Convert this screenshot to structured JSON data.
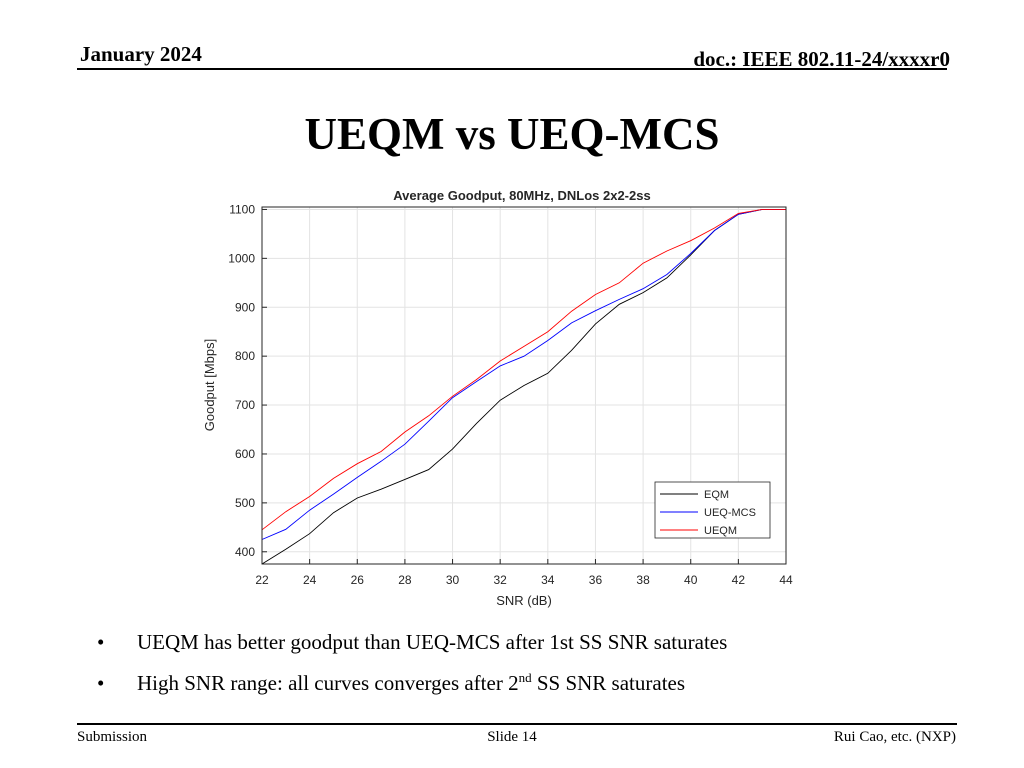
{
  "header": {
    "date": "January 2024",
    "doc": "doc.: IEEE 802.11-24/xxxxr0"
  },
  "slide": {
    "title": "UEQM vs UEQ-MCS"
  },
  "chart_data": {
    "type": "line",
    "title": "Average Goodput, 80MHz, DNLos 2x2-2ss",
    "xlabel": "SNR (dB)",
    "ylabel": "Goodput [Mbps]",
    "xlim": [
      22,
      44
    ],
    "ylim": [
      375,
      1105
    ],
    "xticks": [
      22,
      24,
      26,
      28,
      30,
      32,
      34,
      36,
      38,
      40,
      42,
      44
    ],
    "yticks": [
      400,
      500,
      600,
      700,
      800,
      900,
      1000,
      1100
    ],
    "grid": true,
    "legend_position": "bottom-right",
    "x": [
      22,
      23,
      24,
      25,
      26,
      27,
      28,
      29,
      30,
      31,
      32,
      33,
      34,
      35,
      36,
      37,
      38,
      39,
      40,
      41,
      42,
      43,
      44
    ],
    "series": [
      {
        "name": "EQM",
        "color": "#000000",
        "values": [
          375,
          405,
          437,
          480,
          510,
          528,
          548,
          568,
          610,
          662,
          710,
          740,
          765,
          812,
          866,
          906,
          930,
          960,
          1007,
          1057,
          1090,
          1100,
          1100
        ]
      },
      {
        "name": "UEQ-MCS",
        "color": "#0000ff",
        "values": [
          425,
          446,
          485,
          518,
          552,
          585,
          620,
          667,
          715,
          748,
          780,
          800,
          832,
          868,
          893,
          916,
          938,
          967,
          1010,
          1057,
          1090,
          1100,
          1100
        ]
      },
      {
        "name": "UEQM",
        "color": "#ff0000",
        "values": [
          445,
          482,
          513,
          550,
          580,
          605,
          645,
          678,
          718,
          752,
          790,
          820,
          850,
          892,
          926,
          950,
          990,
          1015,
          1036,
          1062,
          1092,
          1100,
          1100
        ]
      }
    ]
  },
  "bullets": {
    "b1": "UEQM has better goodput than UEQ-MCS after 1st SS SNR saturates",
    "b2_pre": "High SNR range: all curves converges after 2",
    "b2_sup": "nd",
    "b2_post": " SS SNR saturates",
    "marker": "•"
  },
  "footer": {
    "left": "Submission",
    "center": "Slide 14",
    "right": "Rui Cao, etc. (NXP)"
  }
}
